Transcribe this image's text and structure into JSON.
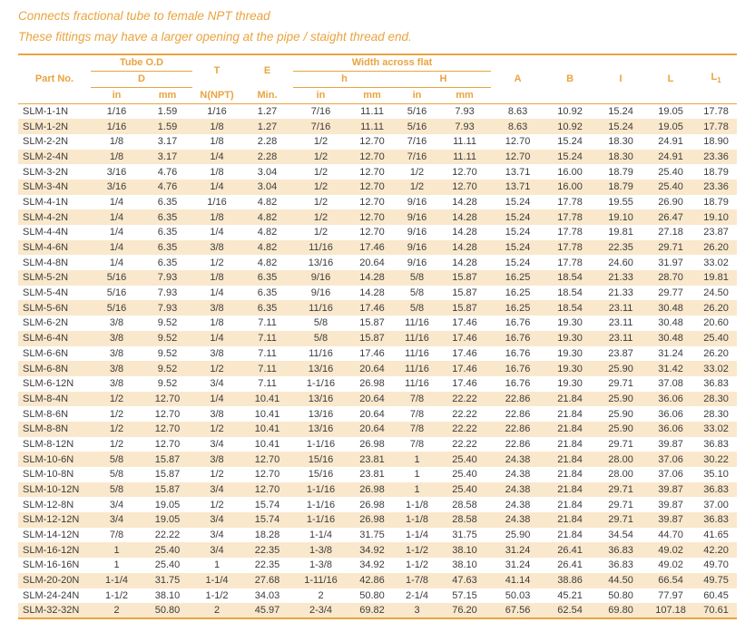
{
  "page": {
    "subtitle1": "Connects fractional tube to female NPT thread",
    "subtitle2": "These fittings may have a larger opening at the pipe / staight thread end."
  },
  "colors": {
    "accent": "#E9A43F",
    "stripe": "#FAE8CC",
    "ink": "#3C3C3C"
  },
  "table": {
    "header": {
      "part_no": "Part No.",
      "tube_od": "Tube O.D",
      "d": "D",
      "t": "T",
      "e": "E",
      "n_npt": "N(NPT)",
      "min": "Min.",
      "width_across_flat": "Width across flat",
      "h_lower": "h",
      "h_upper": "H",
      "in": "in",
      "mm": "mm",
      "a": "A",
      "b": "B",
      "i": "I",
      "l": "L",
      "l1_base": "L",
      "l1_sub": "1"
    },
    "rows": [
      [
        "SLM-1-1N",
        "1/16",
        "1.59",
        "1/16",
        "1.27",
        "7/16",
        "11.11",
        "5/16",
        "7.93",
        "8.63",
        "10.92",
        "15.24",
        "19.05",
        "17.78"
      ],
      [
        "SLM-1-2N",
        "1/16",
        "1.59",
        "1/8",
        "1.27",
        "7/16",
        "11.11",
        "5/16",
        "7.93",
        "8.63",
        "10.92",
        "15.24",
        "19.05",
        "17.78"
      ],
      [
        "SLM-2-2N",
        "1/8",
        "3.17",
        "1/8",
        "2.28",
        "1/2",
        "12.70",
        "7/16",
        "11.11",
        "12.70",
        "15.24",
        "18.30",
        "24.91",
        "18.90"
      ],
      [
        "SLM-2-4N",
        "1/8",
        "3.17",
        "1/4",
        "2.28",
        "1/2",
        "12.70",
        "7/16",
        "11.11",
        "12.70",
        "15.24",
        "18.30",
        "24.91",
        "23.36"
      ],
      [
        "SLM-3-2N",
        "3/16",
        "4.76",
        "1/8",
        "3.04",
        "1/2",
        "12.70",
        "1/2",
        "12.70",
        "13.71",
        "16.00",
        "18.79",
        "25.40",
        "18.79"
      ],
      [
        "SLM-3-4N",
        "3/16",
        "4.76",
        "1/4",
        "3.04",
        "1/2",
        "12.70",
        "1/2",
        "12.70",
        "13.71",
        "16.00",
        "18.79",
        "25.40",
        "23.36"
      ],
      [
        "SLM-4-1N",
        "1/4",
        "6.35",
        "1/16",
        "4.82",
        "1/2",
        "12.70",
        "9/16",
        "14.28",
        "15.24",
        "17.78",
        "19.55",
        "26.90",
        "18.79"
      ],
      [
        "SLM-4-2N",
        "1/4",
        "6.35",
        "1/8",
        "4.82",
        "1/2",
        "12.70",
        "9/16",
        "14.28",
        "15.24",
        "17.78",
        "19.10",
        "26.47",
        "19.10"
      ],
      [
        "SLM-4-4N",
        "1/4",
        "6.35",
        "1/4",
        "4.82",
        "1/2",
        "12.70",
        "9/16",
        "14.28",
        "15.24",
        "17.78",
        "19.81",
        "27.18",
        "23.87"
      ],
      [
        "SLM-4-6N",
        "1/4",
        "6.35",
        "3/8",
        "4.82",
        "11/16",
        "17.46",
        "9/16",
        "14.28",
        "15.24",
        "17.78",
        "22.35",
        "29.71",
        "26.20"
      ],
      [
        "SLM-4-8N",
        "1/4",
        "6.35",
        "1/2",
        "4.82",
        "13/16",
        "20.64",
        "9/16",
        "14.28",
        "15.24",
        "17.78",
        "24.60",
        "31.97",
        "33.02"
      ],
      [
        "SLM-5-2N",
        "5/16",
        "7.93",
        "1/8",
        "6.35",
        "9/16",
        "14.28",
        "5/8",
        "15.87",
        "16.25",
        "18.54",
        "21.33",
        "28.70",
        "19.81"
      ],
      [
        "SLM-5-4N",
        "5/16",
        "7.93",
        "1/4",
        "6.35",
        "9/16",
        "14.28",
        "5/8",
        "15.87",
        "16.25",
        "18.54",
        "21.33",
        "29.77",
        "24.50"
      ],
      [
        "SLM-5-6N",
        "5/16",
        "7.93",
        "3/8",
        "6.35",
        "11/16",
        "17.46",
        "5/8",
        "15.87",
        "16.25",
        "18.54",
        "23.11",
        "30.48",
        "26.20"
      ],
      [
        "SLM-6-2N",
        "3/8",
        "9.52",
        "1/8",
        "7.11",
        "5/8",
        "15.87",
        "11/16",
        "17.46",
        "16.76",
        "19.30",
        "23.11",
        "30.48",
        "20.60"
      ],
      [
        "SLM-6-4N",
        "3/8",
        "9.52",
        "1/4",
        "7.11",
        "5/8",
        "15.87",
        "11/16",
        "17.46",
        "16.76",
        "19.30",
        "23.11",
        "30.48",
        "25.40"
      ],
      [
        "SLM-6-6N",
        "3/8",
        "9.52",
        "3/8",
        "7.11",
        "11/16",
        "17.46",
        "11/16",
        "17.46",
        "16.76",
        "19.30",
        "23.87",
        "31.24",
        "26.20"
      ],
      [
        "SLM-6-8N",
        "3/8",
        "9.52",
        "1/2",
        "7.11",
        "13/16",
        "20.64",
        "11/16",
        "17.46",
        "16.76",
        "19.30",
        "25.90",
        "31.42",
        "33.02"
      ],
      [
        "SLM-6-12N",
        "3/8",
        "9.52",
        "3/4",
        "7.11",
        "1-1/16",
        "26.98",
        "11/16",
        "17.46",
        "16.76",
        "19.30",
        "29.71",
        "37.08",
        "36.83"
      ],
      [
        "SLM-8-4N",
        "1/2",
        "12.70",
        "1/4",
        "10.41",
        "13/16",
        "20.64",
        "7/8",
        "22.22",
        "22.86",
        "21.84",
        "25.90",
        "36.06",
        "28.30"
      ],
      [
        "SLM-8-6N",
        "1/2",
        "12.70",
        "3/8",
        "10.41",
        "13/16",
        "20.64",
        "7/8",
        "22.22",
        "22.86",
        "21.84",
        "25.90",
        "36.06",
        "28.30"
      ],
      [
        "SLM-8-8N",
        "1/2",
        "12.70",
        "1/2",
        "10.41",
        "13/16",
        "20.64",
        "7/8",
        "22.22",
        "22.86",
        "21.84",
        "25.90",
        "36.06",
        "33.02"
      ],
      [
        "SLM-8-12N",
        "1/2",
        "12.70",
        "3/4",
        "10.41",
        "1-1/16",
        "26.98",
        "7/8",
        "22.22",
        "22.86",
        "21.84",
        "29.71",
        "39.87",
        "36.83"
      ],
      [
        "SLM-10-6N",
        "5/8",
        "15.87",
        "3/8",
        "12.70",
        "15/16",
        "23.81",
        "1",
        "25.40",
        "24.38",
        "21.84",
        "28.00",
        "37.06",
        "30.22"
      ],
      [
        "SLM-10-8N",
        "5/8",
        "15.87",
        "1/2",
        "12.70",
        "15/16",
        "23.81",
        "1",
        "25.40",
        "24.38",
        "21.84",
        "28.00",
        "37.06",
        "35.10"
      ],
      [
        "SLM-10-12N",
        "5/8",
        "15.87",
        "3/4",
        "12.70",
        "1-1/16",
        "26.98",
        "1",
        "25.40",
        "24.38",
        "21.84",
        "29.71",
        "39.87",
        "36.83"
      ],
      [
        "SLM-12-8N",
        "3/4",
        "19.05",
        "1/2",
        "15.74",
        "1-1/16",
        "26.98",
        "1-1/8",
        "28.58",
        "24.38",
        "21.84",
        "29.71",
        "39.87",
        "37.00"
      ],
      [
        "SLM-12-12N",
        "3/4",
        "19.05",
        "3/4",
        "15.74",
        "1-1/16",
        "26.98",
        "1-1/8",
        "28.58",
        "24.38",
        "21.84",
        "29.71",
        "39.87",
        "36.83"
      ],
      [
        "SLM-14-12N",
        "7/8",
        "22.22",
        "3/4",
        "18.28",
        "1-1/4",
        "31.75",
        "1-1/4",
        "31.75",
        "25.90",
        "21.84",
        "34.54",
        "44.70",
        "41.65"
      ],
      [
        "SLM-16-12N",
        "1",
        "25.40",
        "3/4",
        "22.35",
        "1-3/8",
        "34.92",
        "1-1/2",
        "38.10",
        "31.24",
        "26.41",
        "36.83",
        "49.02",
        "42.20"
      ],
      [
        "SLM-16-16N",
        "1",
        "25.40",
        "1",
        "22.35",
        "1-3/8",
        "34.92",
        "1-1/2",
        "38.10",
        "31.24",
        "26.41",
        "36.83",
        "49.02",
        "49.70"
      ],
      [
        "SLM-20-20N",
        "1-1/4",
        "31.75",
        "1-1/4",
        "27.68",
        "1-11/16",
        "42.86",
        "1-7/8",
        "47.63",
        "41.14",
        "38.86",
        "44.50",
        "66.54",
        "49.75"
      ],
      [
        "SLM-24-24N",
        "1-1/2",
        "38.10",
        "1-1/2",
        "34.03",
        "2",
        "50.80",
        "2-1/4",
        "57.15",
        "50.03",
        "45.21",
        "50.80",
        "77.97",
        "60.45"
      ],
      [
        "SLM-32-32N",
        "2",
        "50.80",
        "2",
        "45.97",
        "2-3/4",
        "69.82",
        "3",
        "76.20",
        "67.56",
        "62.54",
        "69.80",
        "107.18",
        "70.61"
      ]
    ]
  }
}
